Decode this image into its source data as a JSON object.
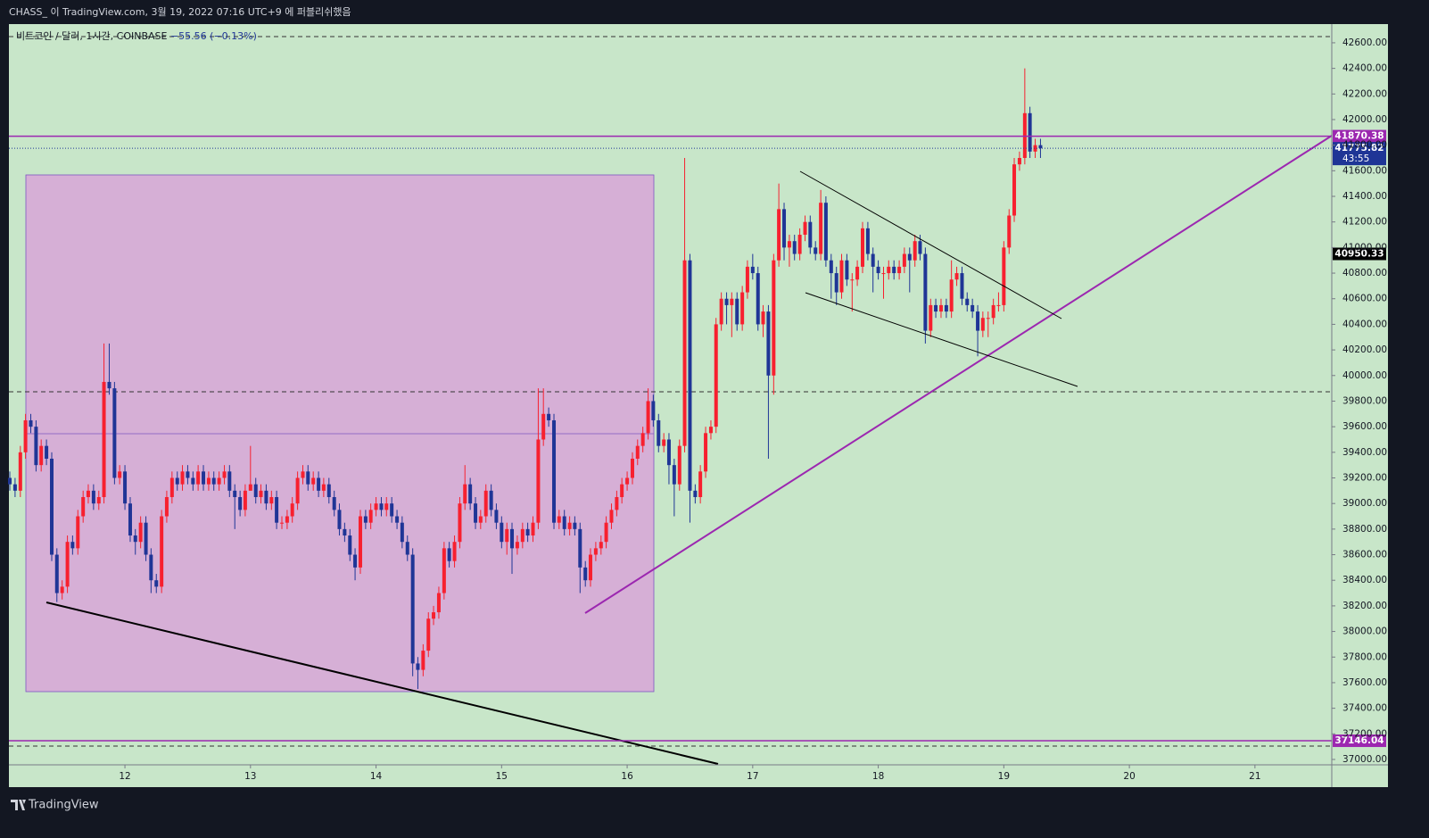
{
  "header": {
    "text": "CHASS_ 이 TradingView.com, 3월 19, 2022 07:16 UTC+9 에 퍼블리쉬했음"
  },
  "chart_data": {
    "type": "candlestick",
    "symbol": "비트코인 / 달러, 1시간, COINBASE",
    "change": "−55.56 (−0.13%)",
    "countdown": "43:55",
    "up_color": "#f7202f",
    "down_color": "#1f3596",
    "xlim": [
      11.076,
      21.612
    ],
    "xticks": [
      12,
      13,
      14,
      15,
      16,
      17,
      18,
      19,
      20,
      21
    ],
    "ylim": [
      36958,
      42746
    ],
    "yticks": [
      {
        "value": 37000,
        "label": "37000.00"
      },
      {
        "value": 37200,
        "label": "37200.00"
      },
      {
        "value": 37400,
        "label": "37400.00"
      },
      {
        "value": 37600,
        "label": "37600.00"
      },
      {
        "value": 37800,
        "label": "37800.00"
      },
      {
        "value": 38000,
        "label": "38000.00"
      },
      {
        "value": 38200,
        "label": "38200.00"
      },
      {
        "value": 38400,
        "label": "38400.00"
      },
      {
        "value": 38600,
        "label": "38600.00"
      },
      {
        "value": 38800,
        "label": "38800.00"
      },
      {
        "value": 39000,
        "label": "39000.00"
      },
      {
        "value": 39200,
        "label": "39200.00"
      },
      {
        "value": 39400,
        "label": "39400.00"
      },
      {
        "value": 39600,
        "label": "39600.00"
      },
      {
        "value": 39800,
        "label": "39800.00"
      },
      {
        "value": 40000,
        "label": "40000.00"
      },
      {
        "value": 40200,
        "label": "40200.00"
      },
      {
        "value": 40400,
        "label": "40400.00"
      },
      {
        "value": 40600,
        "label": "40600.00"
      },
      {
        "value": 40800,
        "label": "40800.00"
      },
      {
        "value": 41000,
        "label": "41000.00"
      },
      {
        "value": 41200,
        "label": "41200.00"
      },
      {
        "value": 41400,
        "label": "41400.00"
      },
      {
        "value": 41600,
        "label": "41600.00"
      },
      {
        "value": 41800,
        "label": "41800.00"
      },
      {
        "value": 42000,
        "label": "42000.00"
      },
      {
        "value": 42200,
        "label": "42200.00"
      },
      {
        "value": 42400,
        "label": "42400.00"
      },
      {
        "value": 42600,
        "label": "42600.00"
      }
    ],
    "price_labels": [
      {
        "value": 41870.38,
        "color": "#9c27b0",
        "line": "solid"
      },
      {
        "value": 41775.82,
        "color": "#1f3596",
        "line": "dotted"
      },
      {
        "value": 40950.33,
        "color": "#000000",
        "line": "none"
      },
      {
        "value": 37146.04,
        "color": "#9c27b0",
        "line": "solid"
      }
    ],
    "x": [
      11.083,
      11.125,
      11.167,
      11.208,
      11.25,
      11.292,
      11.333,
      11.375,
      11.417,
      11.458,
      11.5,
      11.542,
      11.583,
      11.625,
      11.667,
      11.708,
      11.75,
      11.792,
      11.833,
      11.875,
      11.917,
      11.958,
      12,
      12.042,
      12.083,
      12.125,
      12.167,
      12.208,
      12.25,
      12.292,
      12.333,
      12.375,
      12.417,
      12.458,
      12.5,
      12.542,
      12.583,
      12.625,
      12.667,
      12.708,
      12.75,
      12.792,
      12.833,
      12.875,
      12.917,
      12.958,
      13,
      13.042,
      13.083,
      13.125,
      13.167,
      13.208,
      13.25,
      13.292,
      13.333,
      13.375,
      13.417,
      13.458,
      13.5,
      13.542,
      13.583,
      13.625,
      13.667,
      13.708,
      13.75,
      13.792,
      13.833,
      13.875,
      13.917,
      13.958,
      14,
      14.042,
      14.083,
      14.125,
      14.167,
      14.208,
      14.25,
      14.292,
      14.333,
      14.375,
      14.417,
      14.458,
      14.5,
      14.542,
      14.583,
      14.625,
      14.667,
      14.708,
      14.75,
      14.792,
      14.833,
      14.875,
      14.917,
      14.958,
      15,
      15.042,
      15.083,
      15.125,
      15.167,
      15.208,
      15.25,
      15.292,
      15.333,
      15.375,
      15.417,
      15.458,
      15.5,
      15.542,
      15.583,
      15.625,
      15.667,
      15.708,
      15.75,
      15.792,
      15.833,
      15.875,
      15.917,
      15.958,
      16,
      16.042,
      16.083,
      16.125,
      16.167,
      16.208,
      16.25,
      16.292,
      16.333,
      16.375,
      16.417,
      16.458,
      16.5,
      16.542,
      16.583,
      16.625,
      16.667,
      16.708,
      16.75,
      16.792,
      16.833,
      16.875,
      16.917,
      16.958,
      17,
      17.042,
      17.083,
      17.125,
      17.167,
      17.208,
      17.25,
      17.292,
      17.333,
      17.375,
      17.417,
      17.458,
      17.5,
      17.542,
      17.583,
      17.625,
      17.667,
      17.708,
      17.75,
      17.792,
      17.833,
      17.875,
      17.917,
      17.958,
      18,
      18.042,
      18.083,
      18.125,
      18.167,
      18.208,
      18.25,
      18.292,
      18.333,
      18.375,
      18.417,
      18.458,
      18.5,
      18.542,
      18.583,
      18.625,
      18.667,
      18.708,
      18.75,
      18.792,
      18.833,
      18.875,
      18.917,
      18.958,
      19,
      19.042,
      19.083,
      19.125,
      19.167,
      19.208,
      19.25,
      19.292
    ],
    "open": [
      39200,
      39150,
      39100,
      39400,
      39650,
      39600,
      39300,
      39450,
      39350,
      38600,
      38300,
      38350,
      38700,
      38650,
      38900,
      39050,
      39100,
      39000,
      39050,
      39950,
      39900,
      39200,
      39250,
      39000,
      38750,
      38700,
      38850,
      38600,
      38400,
      38350,
      38900,
      39050,
      39200,
      39150,
      39250,
      39200,
      39150,
      39250,
      39150,
      39200,
      39150,
      39200,
      39250,
      39100,
      39050,
      38950,
      39100,
      39150,
      39050,
      39100,
      39000,
      39050,
      38850,
      38850,
      38900,
      39000,
      39200,
      39250,
      39150,
      39200,
      39100,
      39150,
      39050,
      38950,
      38800,
      38750,
      38600,
      38500,
      38900,
      38850,
      38950,
      39000,
      38950,
      39000,
      38900,
      38850,
      38700,
      38600,
      37750,
      37700,
      37850,
      38100,
      38150,
      38300,
      38650,
      38550,
      38700,
      39000,
      39150,
      39000,
      38850,
      38900,
      39100,
      38950,
      38850,
      38700,
      38800,
      38650,
      38700,
      38800,
      38750,
      38850,
      39500,
      39700,
      39650,
      38850,
      38900,
      38800,
      38850,
      38800,
      38500,
      38400,
      38600,
      38650,
      38700,
      38850,
      38950,
      39050,
      39150,
      39200,
      39350,
      39450,
      39550,
      39800,
      39650,
      39450,
      39500,
      39300,
      39150,
      39450,
      40900,
      39100,
      39050,
      39250,
      39550,
      39600,
      40400,
      40600,
      40550,
      40600,
      40400,
      40650,
      40850,
      40800,
      40400,
      40500,
      40000,
      40900,
      41300,
      41000,
      41050,
      40950,
      41100,
      41200,
      41000,
      40950,
      41350,
      40900,
      40800,
      40650,
      40900,
      40750,
      40750,
      40850,
      41150,
      40950,
      40850,
      40800,
      40800,
      40850,
      40800,
      40850,
      40950,
      40900,
      41050,
      40950,
      40350,
      40550,
      40500,
      40550,
      40500,
      40750,
      40800,
      40600,
      40550,
      40500,
      40350,
      40450,
      40450,
      40550,
      40550,
      41000,
      41250,
      41650,
      41700,
      42050,
      41750,
      41800
    ],
    "high": [
      39250,
      39200,
      39450,
      39700,
      39700,
      39650,
      39500,
      39500,
      39400,
      38650,
      38400,
      38750,
      38750,
      38950,
      39100,
      39150,
      39150,
      39100,
      40250,
      40250,
      39950,
      39300,
      39300,
      39050,
      38800,
      38900,
      38900,
      38650,
      38450,
      38950,
      39100,
      39250,
      39250,
      39300,
      39300,
      39250,
      39300,
      39300,
      39250,
      39250,
      39250,
      39300,
      39300,
      39150,
      39100,
      39150,
      39450,
      39200,
      39150,
      39150,
      39100,
      39100,
      38900,
      38950,
      39050,
      39250,
      39300,
      39300,
      39250,
      39250,
      39200,
      39200,
      39100,
      39000,
      38850,
      38800,
      38650,
      38950,
      38950,
      39000,
      39050,
      39050,
      39050,
      39050,
      38950,
      38900,
      38750,
      38650,
      37800,
      37900,
      38150,
      38200,
      38350,
      38700,
      38700,
      38750,
      39050,
      39300,
      39200,
      39050,
      38950,
      39150,
      39150,
      39000,
      38900,
      38850,
      38850,
      38750,
      38850,
      38850,
      38900,
      39900,
      39900,
      39750,
      39700,
      38950,
      38950,
      38900,
      38900,
      38850,
      38550,
      38650,
      38700,
      38750,
      38900,
      39000,
      39100,
      39200,
      39250,
      39400,
      39500,
      39600,
      39900,
      39850,
      39700,
      39550,
      39550,
      39350,
      39500,
      41700,
      40950,
      39150,
      39300,
      39600,
      39650,
      40450,
      40650,
      40650,
      40650,
      40650,
      40700,
      40900,
      40950,
      40850,
      40550,
      40550,
      40950,
      41500,
      41350,
      41100,
      41100,
      41150,
      41250,
      41250,
      41050,
      41450,
      41400,
      40950,
      40850,
      40950,
      40950,
      40800,
      40900,
      41200,
      41200,
      41000,
      40900,
      40850,
      40900,
      40900,
      40900,
      41000,
      41000,
      41100,
      41100,
      41000,
      40600,
      40600,
      40600,
      40600,
      40900,
      40850,
      40850,
      40650,
      40600,
      40550,
      40500,
      40500,
      40600,
      40650,
      41050,
      41300,
      41700,
      41750,
      42400,
      42100,
      41850,
      41850
    ],
    "low": [
      39100,
      39050,
      39050,
      39350,
      39550,
      39250,
      39250,
      39300,
      38550,
      38230,
      38250,
      38300,
      38600,
      38600,
      38850,
      39000,
      38950,
      38950,
      39000,
      39850,
      39150,
      39150,
      38950,
      38700,
      38600,
      38650,
      38550,
      38300,
      38300,
      38300,
      38850,
      39000,
      39100,
      39100,
      39150,
      39100,
      39100,
      39100,
      39100,
      39100,
      39100,
      39150,
      39050,
      38800,
      38900,
      38900,
      39100,
      39000,
      39000,
      38950,
      38950,
      38800,
      38800,
      38800,
      38850,
      38950,
      39150,
      39100,
      39100,
      39050,
      39050,
      39000,
      38900,
      38750,
      38700,
      38550,
      38400,
      38450,
      38800,
      38800,
      38900,
      38900,
      38900,
      38850,
      38800,
      38650,
      38550,
      37650,
      37550,
      37650,
      37800,
      38050,
      38100,
      38250,
      38500,
      38500,
      38650,
      38950,
      38950,
      38800,
      38800,
      38850,
      38900,
      38800,
      38650,
      38600,
      38450,
      38600,
      38650,
      38700,
      38700,
      38800,
      39450,
      39600,
      38800,
      38800,
      38750,
      38750,
      38750,
      38300,
      38350,
      38350,
      38550,
      38600,
      38650,
      38800,
      38900,
      39000,
      39100,
      39150,
      39300,
      39400,
      39500,
      39600,
      39400,
      39400,
      39150,
      38900,
      39100,
      39400,
      38850,
      39000,
      39000,
      39200,
      39500,
      39550,
      40350,
      40400,
      40300,
      40350,
      40350,
      40600,
      40750,
      40350,
      40300,
      39350,
      39850,
      40850,
      40900,
      40850,
      40900,
      40900,
      41050,
      40950,
      40900,
      40900,
      40850,
      40600,
      40550,
      40600,
      40700,
      40500,
      40700,
      40800,
      40900,
      40650,
      40750,
      40600,
      40750,
      40750,
      40750,
      40800,
      40650,
      40850,
      40900,
      40250,
      40300,
      40450,
      40450,
      40450,
      40450,
      40700,
      40550,
      40500,
      40450,
      40150,
      40300,
      40300,
      40400,
      40500,
      40500,
      40950,
      41200,
      41600,
      41650,
      41700,
      41700,
      41700
    ],
    "close": [
      39150,
      39100,
      39400,
      39650,
      39600,
      39300,
      39450,
      39350,
      38600,
      38300,
      38350,
      38700,
      38650,
      38900,
      39050,
      39100,
      39000,
      39050,
      39950,
      39900,
      39200,
      39250,
      39000,
      38750,
      38700,
      38850,
      38600,
      38400,
      38350,
      38900,
      39050,
      39200,
      39150,
      39250,
      39200,
      39150,
      39250,
      39150,
      39200,
      39150,
      39200,
      39250,
      39100,
      39050,
      38950,
      39100,
      39150,
      39050,
      39100,
      39000,
      39050,
      38850,
      38850,
      38900,
      39000,
      39200,
      39250,
      39150,
      39200,
      39100,
      39150,
      39050,
      38950,
      38800,
      38750,
      38600,
      38500,
      38900,
      38850,
      38950,
      39000,
      38950,
      39000,
      38900,
      38850,
      38700,
      38600,
      37750,
      37700,
      37850,
      38100,
      38150,
      38300,
      38650,
      38550,
      38700,
      39000,
      39150,
      39000,
      38850,
      38900,
      39100,
      38950,
      38850,
      38700,
      38800,
      38650,
      38700,
      38800,
      38750,
      38850,
      39500,
      39700,
      39650,
      38850,
      38900,
      38800,
      38850,
      38800,
      38500,
      38400,
      38600,
      38650,
      38700,
      38850,
      38950,
      39050,
      39150,
      39200,
      39350,
      39450,
      39550,
      39800,
      39650,
      39450,
      39500,
      39300,
      39150,
      39450,
      40900,
      39100,
      39050,
      39250,
      39550,
      39600,
      40400,
      40600,
      40550,
      40600,
      40400,
      40650,
      40850,
      40800,
      40400,
      40500,
      40000,
      40900,
      41300,
      41000,
      41050,
      40950,
      41100,
      41200,
      41000,
      40950,
      41350,
      40900,
      40800,
      40650,
      40900,
      40750,
      40750,
      40850,
      41150,
      40950,
      40850,
      40800,
      40800,
      40850,
      40800,
      40850,
      40950,
      40900,
      41050,
      40950,
      40350,
      40550,
      40500,
      40550,
      40500,
      40750,
      40800,
      40600,
      40550,
      40500,
      40350,
      40450,
      40450,
      40550,
      40550,
      41000,
      41250,
      41650,
      41700,
      42050,
      41750,
      41800,
      41775.82
    ]
  },
  "footer": {
    "brand": "TradingView"
  }
}
